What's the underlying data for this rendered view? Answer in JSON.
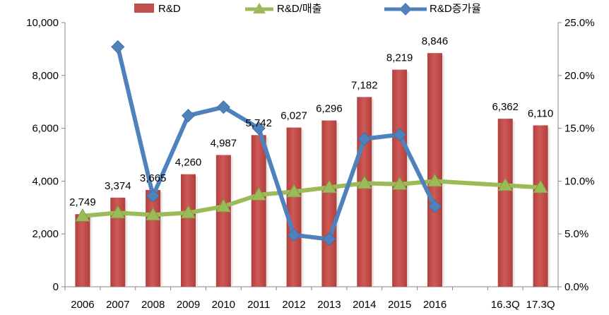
{
  "chart_data": {
    "type": "bar",
    "categories": [
      "2006",
      "2007",
      "2008",
      "2009",
      "2010",
      "2011",
      "2012",
      "2013",
      "2014",
      "2015",
      "2016",
      "",
      "16.3Q",
      "17.3Q"
    ],
    "series": [
      {
        "name": "R&D",
        "type": "bar",
        "axis": "left",
        "color": "#C0504D",
        "values": [
          2749,
          3374,
          3665,
          4260,
          4987,
          5742,
          6027,
          6296,
          7182,
          8219,
          8846,
          null,
          6362,
          6110
        ],
        "labels": [
          "2,749",
          "3,374",
          "3,665",
          "4,260",
          "4,987",
          "5,742",
          "6,027",
          "6,296",
          "7,182",
          "8,219",
          "8,846",
          null,
          "6,362",
          "6,110"
        ]
      },
      {
        "name": "R&D/매출",
        "type": "line",
        "axis": "right",
        "color": "#9BBB59",
        "marker": "triangle",
        "values": [
          6.7,
          7.0,
          6.8,
          7.0,
          7.6,
          8.7,
          9.0,
          9.4,
          9.8,
          9.7,
          10.0,
          null,
          9.6,
          9.4
        ]
      },
      {
        "name": "R&D증가율",
        "type": "line",
        "axis": "right",
        "color": "#4F81BD",
        "marker": "diamond",
        "values": [
          null,
          22.7,
          8.6,
          16.2,
          17.0,
          15.0,
          4.9,
          4.5,
          14.0,
          14.4,
          7.6,
          null,
          null,
          null
        ]
      }
    ],
    "yaxis_left": {
      "min": 0,
      "max": 10000,
      "ticks": [
        0,
        2000,
        4000,
        6000,
        8000,
        10000
      ],
      "tick_labels": [
        "0",
        "2,000",
        "4,000",
        "6,000",
        "8,000",
        "10,000"
      ]
    },
    "yaxis_right": {
      "min": 0,
      "max": 25,
      "ticks": [
        0,
        5,
        10,
        15,
        20,
        25
      ],
      "tick_labels": [
        "0.0%",
        "5.0%",
        "10.0%",
        "15.0%",
        "20.0%",
        "25.0%"
      ]
    },
    "legend": {
      "position": "top",
      "items": [
        "R&D",
        "R&D/매출",
        "R&D증가율"
      ]
    },
    "title": "",
    "xlabel": "",
    "ylabel": "",
    "grid": false
  }
}
